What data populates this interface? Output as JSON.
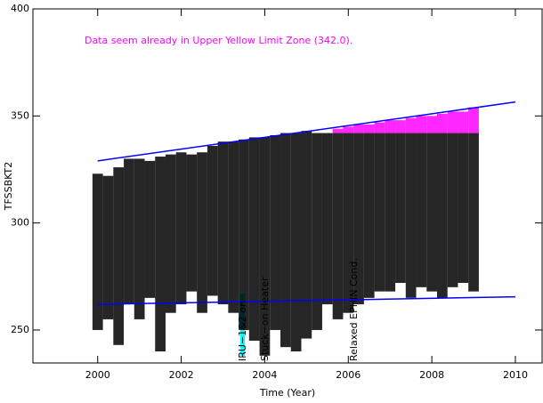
{
  "chart_data": {
    "type": "range-scatter",
    "xlabel": "Time (Year)",
    "ylabel": "TFSSBKT2",
    "annotations": [
      "Data seem already in Upper Yellow  Limit Zone (342.0).",
      "IRU−1&2 on",
      "Stuck−on Heater",
      "Relaxed EPHIN Cond."
    ],
    "xlim": [
      1998.45,
      2010.64
    ],
    "ylim": [
      234.6,
      400
    ],
    "xticks": [
      2000,
      2002,
      2004,
      2006,
      2008,
      2010
    ],
    "yticks": [
      250,
      300,
      350,
      400
    ],
    "ranges": [
      {
        "color": "#000000",
        "x": [
          2000,
          2000.25,
          2000.5,
          2000.75,
          2001,
          2001.25,
          2001.5,
          2001.75,
          2002,
          2002.25,
          2002.5,
          2002.75,
          2003,
          2003.25,
          2003.5,
          2003.75,
          2004,
          2004.25,
          2004.5,
          2004.75,
          2005,
          2005.25,
          2005.5,
          2005.75,
          2006,
          2006.25,
          2006.5,
          2006.75,
          2007,
          2007.25,
          2007.5,
          2007.75,
          2008,
          2008.25,
          2008.5,
          2008.75,
          2009
        ],
        "low": [
          250,
          255,
          243,
          262,
          255,
          265,
          240,
          258,
          262,
          268,
          258,
          266,
          262,
          258,
          250,
          245,
          238,
          250,
          242,
          240,
          246,
          250,
          262,
          255,
          258,
          262,
          265,
          268,
          268,
          272,
          265,
          270,
          268,
          265,
          270,
          272,
          268
        ],
        "high": [
          323,
          322,
          326,
          330,
          330,
          329,
          331,
          332,
          333,
          332,
          333,
          336,
          338,
          338,
          339,
          340,
          340,
          341,
          342,
          342,
          343,
          342,
          342,
          342,
          342,
          342,
          342,
          342,
          342,
          342,
          342,
          342,
          342,
          342,
          342,
          342,
          342
        ]
      },
      {
        "color": "#ff00ff",
        "x": [
          2005.75,
          2006,
          2006.25,
          2006.5,
          2006.75,
          2007,
          2007.25,
          2007.5,
          2007.75,
          2008,
          2008.25,
          2008.5,
          2008.75,
          2009
        ],
        "low": [
          342,
          342,
          342,
          342,
          342,
          342,
          342,
          342,
          342,
          342,
          342,
          342,
          342,
          342
        ],
        "high": [
          344,
          345,
          346,
          346,
          347,
          348,
          348,
          349,
          350,
          350,
          351,
          352,
          352,
          354
        ]
      }
    ],
    "limit_lines": [
      {
        "color": "#0000ff",
        "x": [
          2000,
          2010
        ],
        "values": [
          329,
          356.5
        ]
      },
      {
        "color": "#0000ff",
        "x": [
          2000,
          2010
        ],
        "values": [
          262,
          265.5
        ]
      }
    ]
  }
}
